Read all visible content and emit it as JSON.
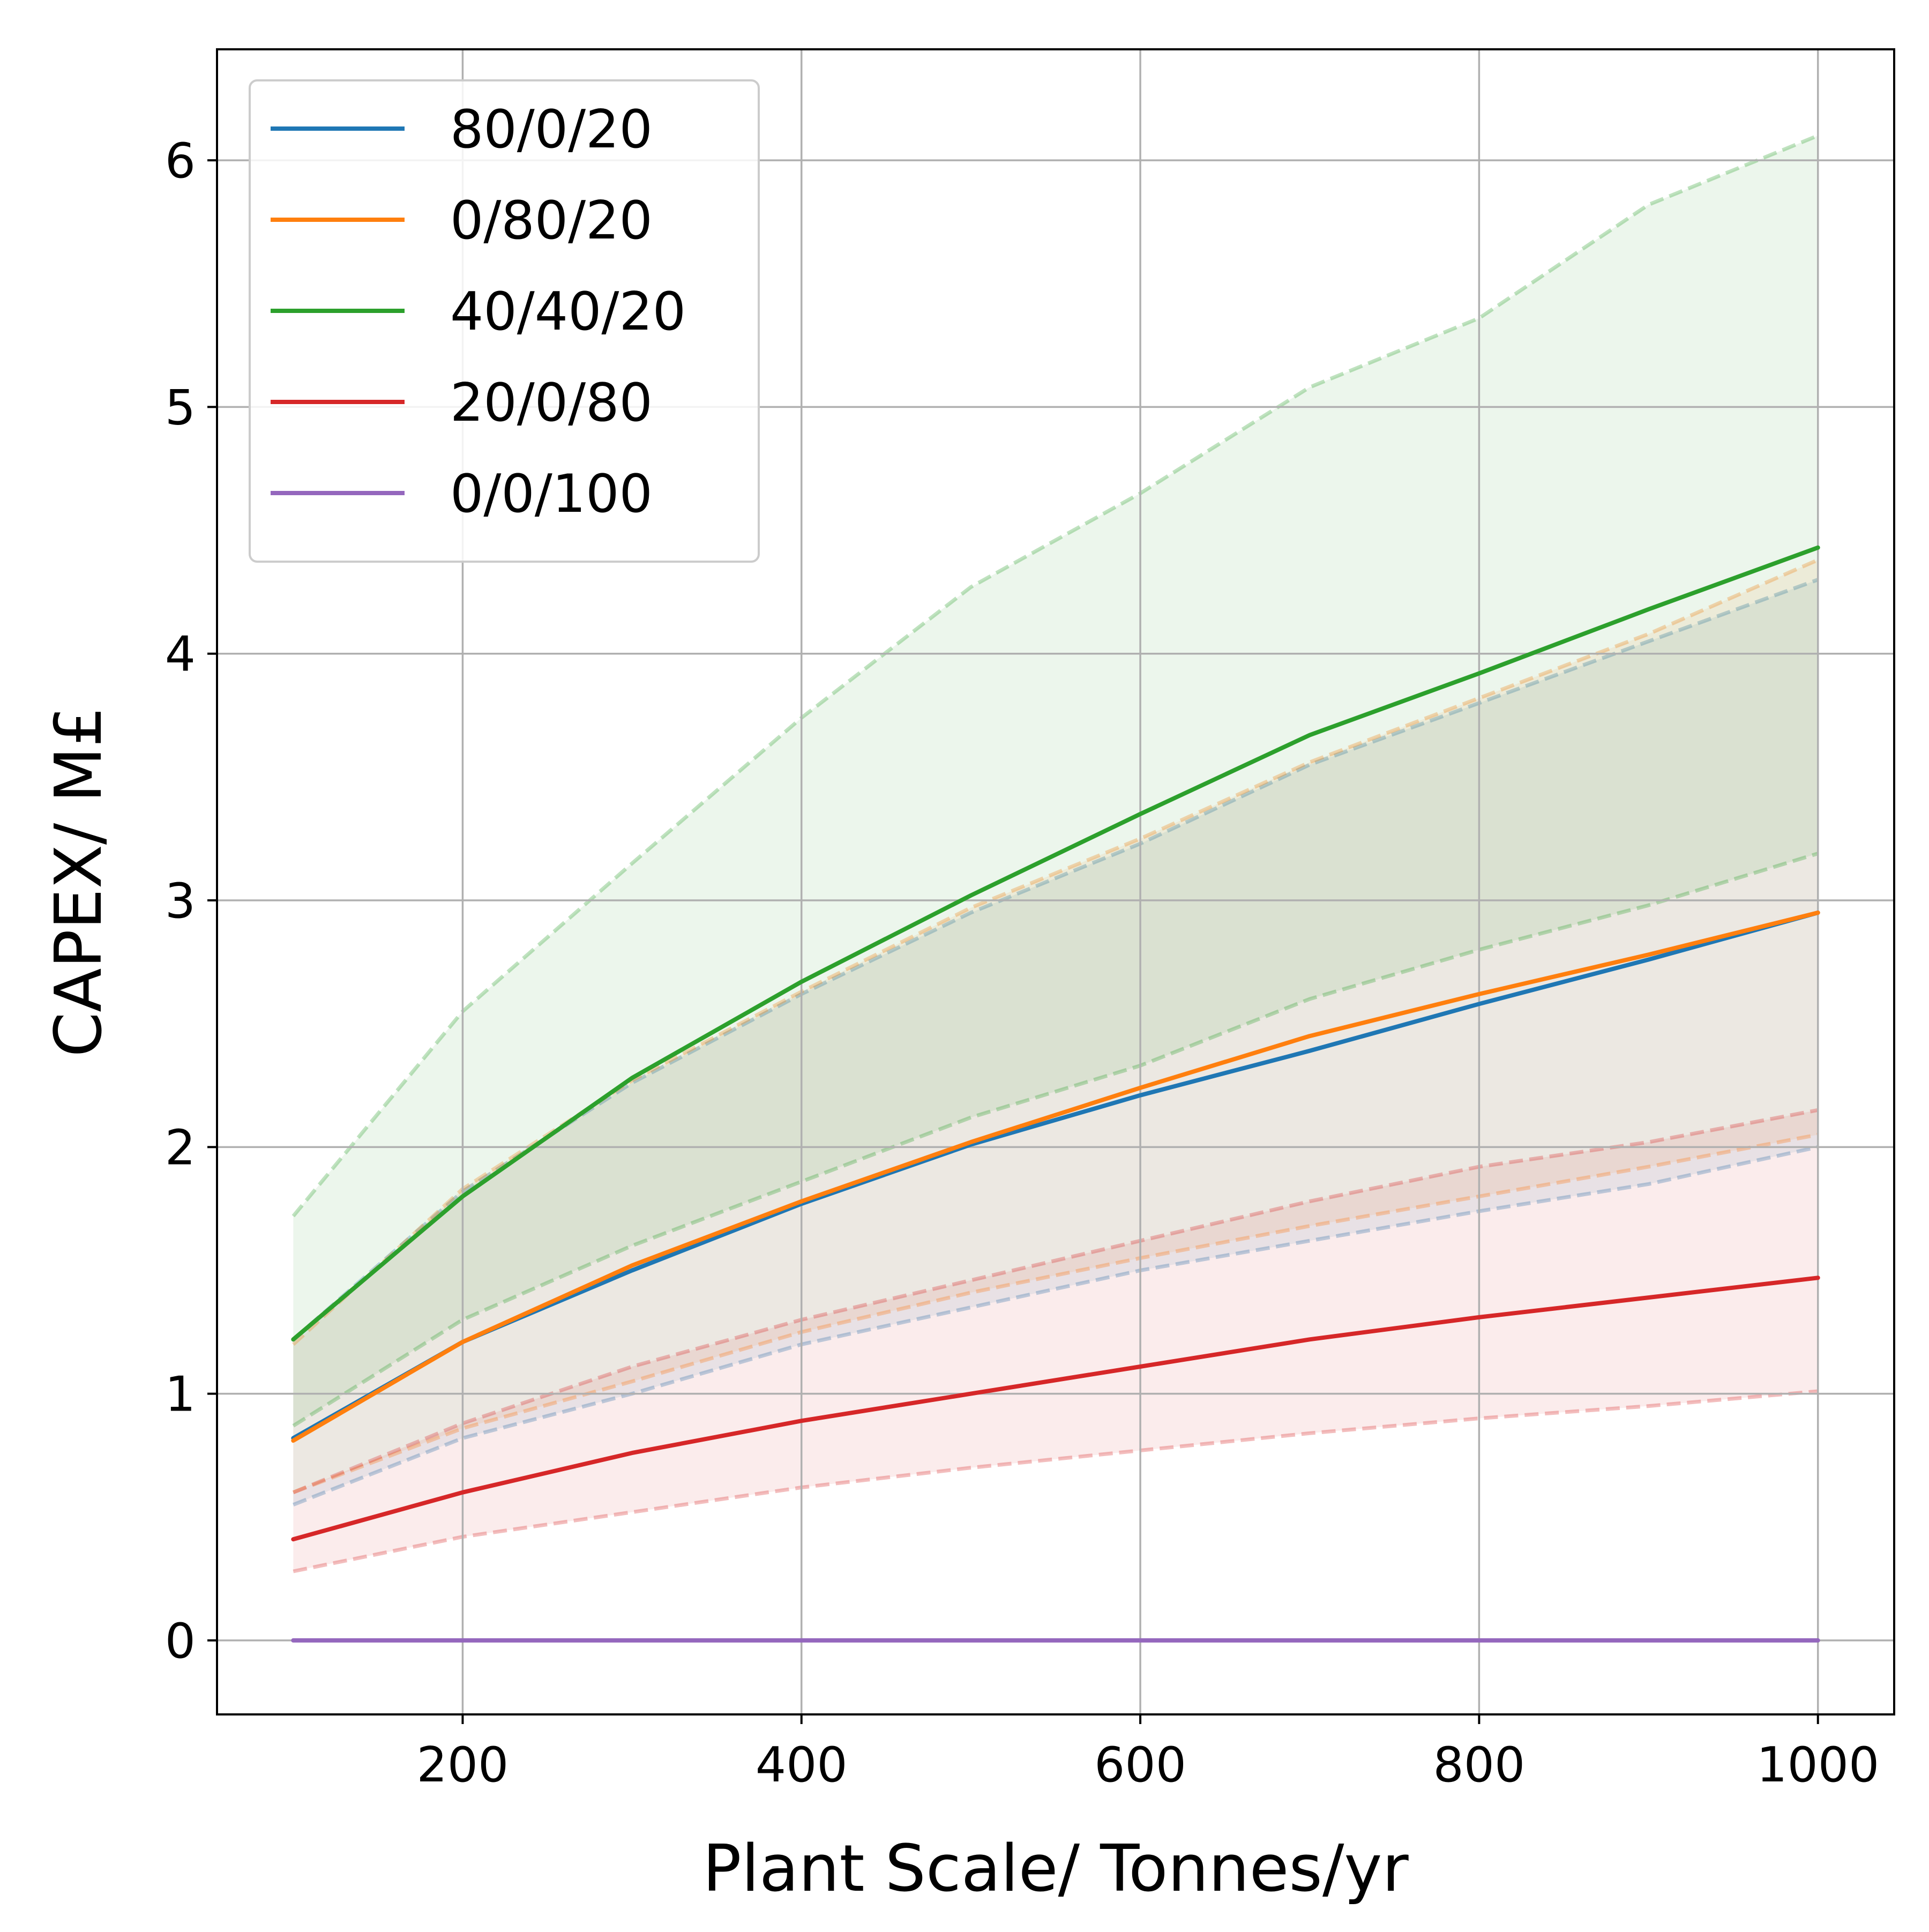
{
  "chart_data": {
    "type": "line",
    "title": "",
    "xlabel": "Plant Scale/ Tonnes/yr",
    "ylabel": "CAPEX/ M£",
    "xlim": [
      55,
      1045
    ],
    "ylim": [
      -0.3,
      6.45
    ],
    "xticks": [
      200,
      400,
      600,
      800,
      1000
    ],
    "yticks": [
      0,
      1,
      2,
      3,
      4,
      5,
      6
    ],
    "grid": true,
    "legend_placement": "upper-left",
    "x": [
      100,
      200,
      300,
      400,
      500,
      600,
      700,
      800,
      900,
      1000
    ],
    "series": [
      {
        "name": "80/0/20",
        "color": "#1f77b4",
        "values": [
          0.82,
          1.21,
          1.5,
          1.77,
          2.01,
          2.21,
          2.39,
          2.58,
          2.76,
          2.95
        ],
        "band": {
          "lower": [
            0.55,
            0.82,
            1.0,
            1.2,
            1.35,
            1.5,
            1.62,
            1.74,
            1.85,
            2.0
          ],
          "upper": [
            1.22,
            1.82,
            2.26,
            2.62,
            2.95,
            3.23,
            3.55,
            3.8,
            4.05,
            4.3
          ]
        }
      },
      {
        "name": "0/80/20",
        "color": "#ff7f0e",
        "values": [
          0.81,
          1.21,
          1.52,
          1.78,
          2.02,
          2.24,
          2.45,
          2.62,
          2.78,
          2.95
        ],
        "band": {
          "lower": [
            0.6,
            0.86,
            1.05,
            1.25,
            1.41,
            1.55,
            1.68,
            1.8,
            1.92,
            2.05
          ],
          "upper": [
            1.2,
            1.83,
            2.27,
            2.63,
            2.97,
            3.25,
            3.56,
            3.82,
            4.08,
            4.38
          ]
        }
      },
      {
        "name": "40/40/20",
        "color": "#2ca02c",
        "values": [
          1.22,
          1.8,
          2.28,
          2.67,
          3.02,
          3.35,
          3.67,
          3.92,
          4.18,
          4.43
        ],
        "band": {
          "lower": [
            0.87,
            1.3,
            1.6,
            1.86,
            2.12,
            2.33,
            2.6,
            2.8,
            2.98,
            3.19
          ],
          "upper": [
            1.72,
            2.55,
            3.15,
            3.74,
            4.27,
            4.65,
            5.08,
            5.36,
            5.82,
            6.1
          ]
        }
      },
      {
        "name": "20/0/80",
        "color": "#d62728",
        "values": [
          0.41,
          0.6,
          0.76,
          0.89,
          1.0,
          1.11,
          1.22,
          1.31,
          1.39,
          1.47
        ],
        "band": {
          "lower": [
            0.28,
            0.42,
            0.52,
            0.62,
            0.7,
            0.77,
            0.84,
            0.9,
            0.95,
            1.01
          ],
          "upper": [
            0.6,
            0.88,
            1.11,
            1.3,
            1.46,
            1.62,
            1.78,
            1.92,
            2.02,
            2.15
          ]
        }
      },
      {
        "name": "0/0/100",
        "color": "#9467bd",
        "values": [
          0,
          0,
          0,
          0,
          0,
          0,
          0,
          0,
          0,
          0
        ]
      }
    ]
  }
}
